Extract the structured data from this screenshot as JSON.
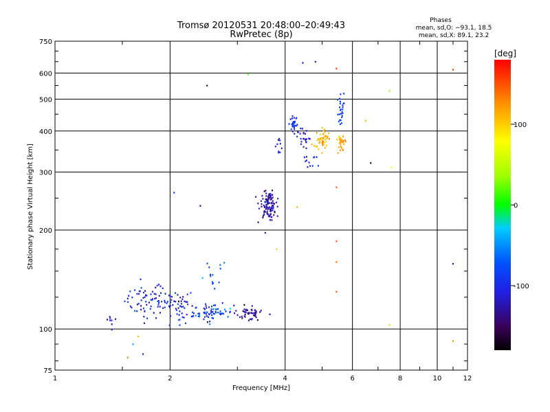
{
  "chart_data": {
    "type": "scatter",
    "title": "Tromsø 20120531 20:48:00–20:49:43",
    "subtitle": "RwPretec (8p)",
    "xlabel": "Frequency [MHz]",
    "ylabel": "Stationary phase Virtual Height [km]",
    "x_scale": "log",
    "y_scale": "log",
    "xlim": [
      1,
      12
    ],
    "ylim": [
      75,
      750
    ],
    "x_ticks": [
      1,
      2,
      4,
      6,
      8,
      10,
      12
    ],
    "y_ticks": [
      75,
      100,
      200,
      300,
      400,
      500,
      600,
      750
    ],
    "grid": true,
    "stats": {
      "heading": "Phases",
      "line1": "mean, sd,O: −93.1, 18.5",
      "line2": "mean, sd,X:  89.1, 23.2"
    },
    "colorbar": {
      "label": "[deg]",
      "min": -180,
      "max": 180,
      "ticks": [
        -100,
        0,
        100
      ]
    },
    "clusters": [
      {
        "x": 1.4,
        "y": 106,
        "sx": 0.02,
        "sy": 0.03,
        "n": 8,
        "c": -110,
        "sc": 12
      },
      {
        "x": 1.75,
        "y": 122,
        "sx": 0.07,
        "sy": 0.06,
        "n": 70,
        "c": -105,
        "sc": 18
      },
      {
        "x": 2.1,
        "y": 118,
        "sx": 0.05,
        "sy": 0.06,
        "n": 50,
        "c": -100,
        "sc": 22
      },
      {
        "x": 2.6,
        "y": 112,
        "sx": 0.06,
        "sy": 0.03,
        "n": 70,
        "c": -90,
        "sc": 22
      },
      {
        "x": 3.2,
        "y": 112,
        "sx": 0.04,
        "sy": 0.025,
        "n": 50,
        "c": -130,
        "sc": 15
      },
      {
        "x": 2.6,
        "y": 145,
        "sx": 0.04,
        "sy": 0.06,
        "n": 14,
        "c": -80,
        "sc": 20
      },
      {
        "x": 3.6,
        "y": 240,
        "sx": 0.025,
        "sy": 0.05,
        "n": 110,
        "c": -125,
        "sc": 12
      },
      {
        "x": 4.2,
        "y": 420,
        "sx": 0.012,
        "sy": 0.03,
        "n": 30,
        "c": -100,
        "sc": 12
      },
      {
        "x": 4.5,
        "y": 380,
        "sx": 0.025,
        "sy": 0.04,
        "n": 25,
        "c": -110,
        "sc": 15
      },
      {
        "x": 5.0,
        "y": 380,
        "sx": 0.025,
        "sy": 0.035,
        "n": 50,
        "c": 110,
        "sc": 12
      },
      {
        "x": 5.6,
        "y": 370,
        "sx": 0.012,
        "sy": 0.04,
        "n": 30,
        "c": 115,
        "sc": 10
      },
      {
        "x": 5.6,
        "y": 460,
        "sx": 0.01,
        "sy": 0.05,
        "n": 25,
        "c": -95,
        "sc": 12
      },
      {
        "x": 3.85,
        "y": 360,
        "sx": 0.01,
        "sy": 0.03,
        "n": 10,
        "c": -110,
        "sc": 12
      },
      {
        "x": 4.7,
        "y": 320,
        "sx": 0.02,
        "sy": 0.03,
        "n": 12,
        "c": -100,
        "sc": 15
      }
    ],
    "sparse_points": [
      {
        "x": 1.55,
        "y": 82,
        "c": 130
      },
      {
        "x": 1.6,
        "y": 90,
        "c": -40
      },
      {
        "x": 1.65,
        "y": 95,
        "c": 110
      },
      {
        "x": 1.7,
        "y": 84,
        "c": -100
      },
      {
        "x": 2.05,
        "y": 260,
        "c": -90
      },
      {
        "x": 2.4,
        "y": 237,
        "c": -140
      },
      {
        "x": 2.5,
        "y": 550,
        "c": -150
      },
      {
        "x": 3.2,
        "y": 595,
        "c": 20
      },
      {
        "x": 3.8,
        "y": 175,
        "c": 100
      },
      {
        "x": 4.3,
        "y": 235,
        "c": 110
      },
      {
        "x": 4.45,
        "y": 645,
        "c": -120
      },
      {
        "x": 4.8,
        "y": 650,
        "c": -120
      },
      {
        "x": 5.45,
        "y": 620,
        "c": 160
      },
      {
        "x": 5.45,
        "y": 185,
        "c": 150
      },
      {
        "x": 5.45,
        "y": 130,
        "c": 150
      },
      {
        "x": 5.45,
        "y": 160,
        "c": 140
      },
      {
        "x": 5.45,
        "y": 270,
        "c": 150
      },
      {
        "x": 5.7,
        "y": 520,
        "c": -90
      },
      {
        "x": 6.5,
        "y": 430,
        "c": 110
      },
      {
        "x": 6.7,
        "y": 320,
        "c": -160
      },
      {
        "x": 7.5,
        "y": 530,
        "c": 30
      },
      {
        "x": 7.6,
        "y": 310,
        "c": 80
      },
      {
        "x": 7.5,
        "y": 103,
        "c": 100
      },
      {
        "x": 11.0,
        "y": 615,
        "c": 160
      },
      {
        "x": 11.0,
        "y": 158,
        "c": -120
      },
      {
        "x": 11.0,
        "y": 92,
        "c": 120
      }
    ]
  }
}
